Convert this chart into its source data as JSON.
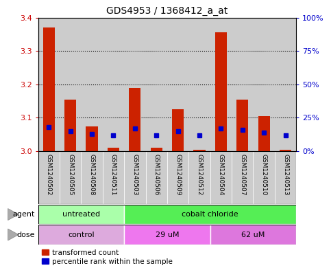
{
  "title": "GDS4953 / 1368412_a_at",
  "samples": [
    "GSM1240502",
    "GSM1240505",
    "GSM1240508",
    "GSM1240511",
    "GSM1240503",
    "GSM1240506",
    "GSM1240509",
    "GSM1240512",
    "GSM1240504",
    "GSM1240507",
    "GSM1240510",
    "GSM1240513"
  ],
  "red_values": [
    3.37,
    3.155,
    3.075,
    3.01,
    3.19,
    3.01,
    3.125,
    3.005,
    3.355,
    3.155,
    3.105,
    3.005
  ],
  "blue_values": [
    18,
    15,
    13,
    12,
    17,
    12,
    15,
    12,
    17,
    16,
    14,
    12
  ],
  "ylim_left": [
    3.0,
    3.4
  ],
  "ylim_right": [
    0,
    100
  ],
  "yticks_left": [
    3.0,
    3.1,
    3.2,
    3.3,
    3.4
  ],
  "yticks_right": [
    0,
    25,
    50,
    75,
    100
  ],
  "ytick_labels_right": [
    "0%",
    "25%",
    "50%",
    "75%",
    "100%"
  ],
  "left_tick_color": "#cc0000",
  "right_tick_color": "#0000cc",
  "bar_color_red": "#cc2200",
  "bar_color_blue": "#0000cc",
  "bar_bottom": 3.0,
  "agent_groups": [
    {
      "label": "untreated",
      "start": 0,
      "end": 3,
      "color": "#aaffaa"
    },
    {
      "label": "cobalt chloride",
      "start": 4,
      "end": 11,
      "color": "#55ee55"
    }
  ],
  "dose_groups": [
    {
      "label": "control",
      "start": 0,
      "end": 3,
      "color": "#ddaadd"
    },
    {
      "label": "29 uM",
      "start": 4,
      "end": 7,
      "color": "#ee77ee"
    },
    {
      "label": "62 uM",
      "start": 8,
      "end": 11,
      "color": "#dd77dd"
    }
  ],
  "legend_red_label": "transformed count",
  "legend_blue_label": "percentile rank within the sample",
  "agent_label": "agent",
  "dose_label": "dose",
  "bar_width": 0.55,
  "bg_color": "#ffffff",
  "sample_bg_color": "#cccccc",
  "border_color": "#888888"
}
